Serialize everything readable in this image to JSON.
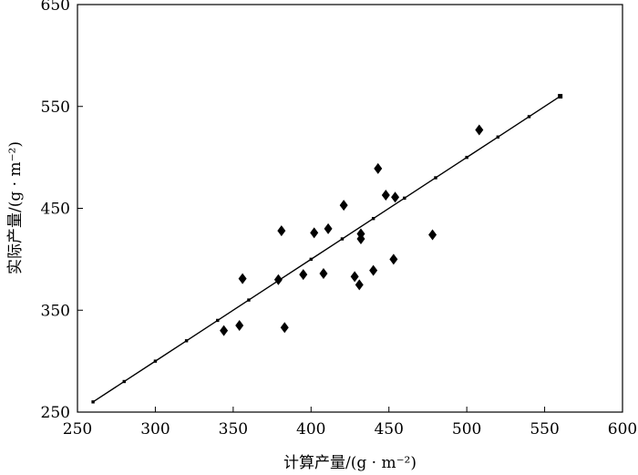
{
  "chart_data": {
    "type": "scatter",
    "xlabel": "计算产量/(g · m⁻²)",
    "ylabel": "实际产量/(g · m⁻²)",
    "xlim": [
      250,
      600
    ],
    "ylim": [
      250,
      650
    ],
    "x_ticks": [
      250,
      300,
      350,
      400,
      450,
      500,
      550,
      600
    ],
    "y_ticks": [
      250,
      350,
      450,
      550,
      650
    ],
    "grid": false,
    "series": [
      {
        "marker": "diamond",
        "points": [
          [
            344,
            330
          ],
          [
            354,
            335
          ],
          [
            356,
            381
          ],
          [
            379,
            380
          ],
          [
            381,
            428
          ],
          [
            383,
            333
          ],
          [
            395,
            385
          ],
          [
            402,
            426
          ],
          [
            408,
            386
          ],
          [
            411,
            430
          ],
          [
            421,
            453
          ],
          [
            428,
            383
          ],
          [
            431,
            375
          ],
          [
            432,
            425
          ],
          [
            432,
            420
          ],
          [
            440,
            389
          ],
          [
            443,
            489
          ],
          [
            448,
            463
          ],
          [
            453,
            400
          ],
          [
            454,
            461
          ],
          [
            478,
            424
          ],
          [
            508,
            527
          ]
        ]
      },
      {
        "marker": "square",
        "line": true,
        "points": [
          [
            260,
            260
          ],
          [
            280,
            280
          ],
          [
            300,
            300
          ],
          [
            320,
            320
          ],
          [
            340,
            340
          ],
          [
            360,
            360
          ],
          [
            380,
            380
          ],
          [
            400,
            400
          ],
          [
            420,
            420
          ],
          [
            440,
            440
          ],
          [
            460,
            460
          ],
          [
            480,
            480
          ],
          [
            500,
            500
          ],
          [
            520,
            520
          ],
          [
            540,
            540
          ],
          [
            560,
            560
          ]
        ]
      }
    ]
  }
}
